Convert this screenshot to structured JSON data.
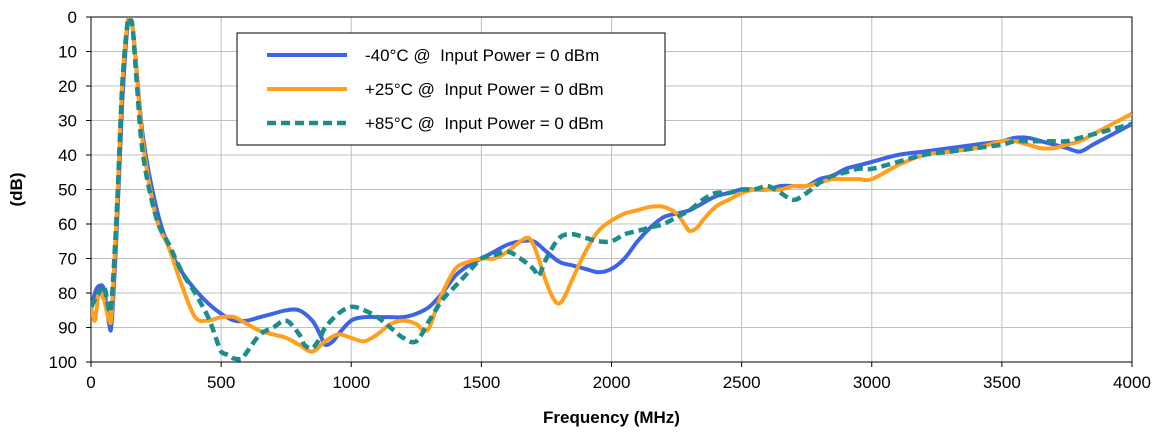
{
  "chart_data": {
    "type": "line",
    "title": "",
    "xlabel": "Frequency (MHz)",
    "ylabel": "(dB)",
    "xlim": [
      0,
      4000
    ],
    "ylim": [
      0,
      100
    ],
    "y_inverted": true,
    "x_ticks": [
      0,
      500,
      1000,
      1500,
      2000,
      2500,
      3000,
      3500,
      4000
    ],
    "y_ticks": [
      0,
      10,
      20,
      30,
      40,
      50,
      60,
      70,
      80,
      90,
      100
    ],
    "grid": true,
    "legend_position": "top-left",
    "series": [
      {
        "name": "-40°C @  Input Power = 0 dBm",
        "color": "#3c64e6",
        "dash": "solid",
        "x": [
          0,
          15,
          30,
          50,
          70,
          80,
          100,
          120,
          140,
          150,
          160,
          175,
          200,
          250,
          300,
          350,
          400,
          450,
          500,
          550,
          600,
          650,
          700,
          750,
          800,
          850,
          880,
          900,
          930,
          950,
          1000,
          1050,
          1100,
          1150,
          1200,
          1250,
          1300,
          1350,
          1400,
          1450,
          1500,
          1550,
          1600,
          1650,
          1700,
          1750,
          1800,
          1850,
          1900,
          1950,
          2000,
          2050,
          2100,
          2150,
          2200,
          2250,
          2300,
          2350,
          2400,
          2450,
          2500,
          2550,
          2600,
          2650,
          2700,
          2750,
          2800,
          2850,
          2900,
          2950,
          3000,
          3100,
          3200,
          3300,
          3400,
          3500,
          3550,
          3600,
          3650,
          3700,
          3750,
          3800,
          3850,
          3900,
          3950,
          4000
        ],
        "y": [
          85,
          80,
          78,
          79,
          89,
          88,
          60,
          25,
          3,
          2,
          3,
          15,
          35,
          55,
          67,
          74,
          79,
          83,
          86,
          88,
          88,
          87,
          86,
          85,
          85,
          88,
          92,
          95,
          94,
          92,
          88,
          87,
          87,
          87,
          87,
          86,
          84,
          80,
          75,
          72,
          70,
          68,
          66,
          65,
          65,
          68,
          71,
          72,
          73,
          74,
          73,
          70,
          65,
          61,
          58,
          57,
          56,
          54,
          52,
          51,
          50,
          50,
          50,
          49,
          49,
          49,
          47,
          46,
          44,
          43,
          42,
          40,
          39,
          38,
          37,
          36,
          35,
          35,
          36,
          37,
          38,
          39,
          37,
          35,
          33,
          31
        ]
      },
      {
        "name": "+25°C @  Input Power = 0 dBm",
        "color": "#ff9f1c",
        "dash": "solid",
        "x": [
          0,
          15,
          30,
          50,
          70,
          80,
          100,
          120,
          140,
          150,
          160,
          175,
          200,
          250,
          300,
          350,
          400,
          450,
          500,
          550,
          600,
          650,
          700,
          750,
          800,
          850,
          900,
          950,
          1000,
          1050,
          1100,
          1150,
          1200,
          1250,
          1280,
          1300,
          1320,
          1350,
          1400,
          1450,
          1500,
          1550,
          1600,
          1650,
          1680,
          1700,
          1720,
          1750,
          1780,
          1800,
          1820,
          1850,
          1900,
          1950,
          2000,
          2050,
          2100,
          2150,
          2200,
          2250,
          2280,
          2300,
          2330,
          2350,
          2400,
          2450,
          2500,
          2550,
          2600,
          2650,
          2700,
          2750,
          2800,
          2850,
          2900,
          2950,
          3000,
          3100,
          3200,
          3300,
          3400,
          3500,
          3550,
          3600,
          3650,
          3700,
          3750,
          3800,
          3850,
          3900,
          3950,
          4000
        ],
        "y": [
          84,
          88,
          80,
          82,
          88,
          85,
          55,
          20,
          2,
          2,
          3,
          15,
          37,
          58,
          67,
          78,
          87,
          88,
          87,
          87,
          89,
          91,
          92,
          93,
          95,
          97,
          94,
          92,
          93,
          94,
          92,
          89,
          88,
          89,
          91,
          90,
          86,
          80,
          73,
          71,
          70,
          70,
          68,
          65,
          64,
          66,
          70,
          77,
          82,
          83,
          81,
          76,
          68,
          62,
          59,
          57,
          56,
          55,
          55,
          57,
          60,
          62,
          61,
          59,
          55,
          53,
          51,
          50,
          50,
          50,
          49,
          49,
          48,
          47,
          47,
          47,
          47,
          43,
          40,
          39,
          38,
          36,
          36,
          37,
          38,
          38,
          37,
          36,
          34,
          32,
          30,
          28
        ]
      },
      {
        "name": "+85°C @  Input Power = 0 dBm",
        "color": "#1c8c8c",
        "dash": "dashed",
        "x": [
          0,
          15,
          30,
          50,
          70,
          80,
          100,
          120,
          140,
          150,
          160,
          175,
          200,
          250,
          300,
          350,
          400,
          450,
          480,
          500,
          530,
          550,
          580,
          600,
          650,
          700,
          750,
          800,
          820,
          850,
          880,
          900,
          950,
          1000,
          1050,
          1100,
          1150,
          1200,
          1250,
          1300,
          1350,
          1400,
          1450,
          1500,
          1550,
          1600,
          1650,
          1700,
          1720,
          1750,
          1800,
          1850,
          1900,
          1950,
          2000,
          2050,
          2100,
          2150,
          2200,
          2250,
          2300,
          2350,
          2400,
          2450,
          2500,
          2550,
          2600,
          2650,
          2700,
          2750,
          2800,
          2850,
          2900,
          2950,
          3000,
          3100,
          3200,
          3300,
          3400,
          3500,
          3550,
          3600,
          3650,
          3700,
          3750,
          3800,
          3850,
          3900,
          3950,
          4000
        ],
        "y": [
          84,
          82,
          80,
          78,
          85,
          82,
          55,
          20,
          2,
          1,
          3,
          18,
          40,
          58,
          66,
          74,
          80,
          87,
          93,
          97,
          98,
          99,
          99,
          97,
          92,
          90,
          88,
          92,
          95,
          96,
          93,
          90,
          86,
          84,
          85,
          87,
          90,
          93,
          94,
          88,
          82,
          78,
          74,
          70,
          69,
          68,
          70,
          73,
          75,
          70,
          64,
          63,
          64,
          65,
          65,
          63,
          62,
          61,
          60,
          58,
          56,
          53,
          51,
          51,
          50,
          50,
          49,
          51,
          53,
          51,
          48,
          46,
          45,
          44,
          44,
          42,
          40,
          39,
          38,
          37,
          36,
          36,
          36,
          36,
          36,
          35,
          34,
          33,
          32,
          31
        ]
      }
    ]
  }
}
